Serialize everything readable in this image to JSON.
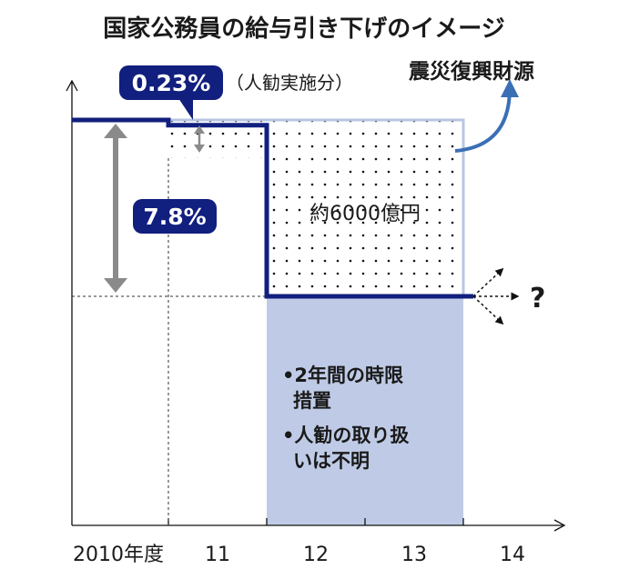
{
  "chart_data": {
    "type": "step",
    "title": "国家公務員の給与引き下げのイメージ",
    "x_ticks": [
      "2010年度",
      "11",
      "12",
      "13",
      "14"
    ],
    "salary_level_percent": [
      {
        "period": "2010年度",
        "value": 100
      },
      {
        "period": "11",
        "value": 99.77
      },
      {
        "period": "12",
        "value": 92.2
      },
      {
        "period": "13",
        "value": 92.2
      },
      {
        "period": "14",
        "value": null
      }
    ],
    "annotations": {
      "cut_small": "0.23%",
      "cut_small_note": "（人勧実施分）",
      "cut_large": "7.8%",
      "dotted_area": "約6000億円",
      "dotted_area_use": "震災復興財源",
      "future": "?",
      "shaded_notes": [
        "•2年間の時限",
        "措置",
        "•人勧の取り扱",
        "いは不明"
      ]
    },
    "colors": {
      "line": "#111f7e",
      "badge": "#111f7e",
      "shaded": "#bfcbe6",
      "outline": "#b9c6e2",
      "arrow_gray": "#8a8a8a",
      "arrow_blue": "#3b6fb5"
    }
  }
}
